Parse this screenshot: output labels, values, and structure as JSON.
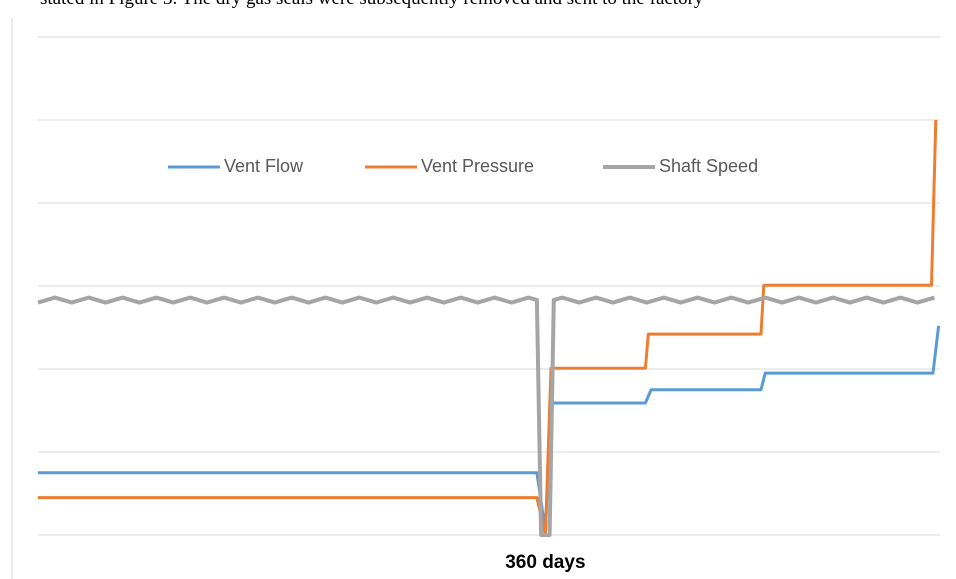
{
  "caption": "stated in Figure 3. The dry gas seals were subsequently removed and sent to the factory",
  "chart_data": {
    "type": "line",
    "xlim": [
      0,
      640
    ],
    "xticks": [
      {
        "value": 360,
        "label": "360 days"
      }
    ],
    "ylim": [
      0,
      6
    ],
    "yticks": [
      0,
      1,
      2,
      3,
      4,
      5,
      6
    ],
    "grid": true,
    "legend": "top",
    "series": [
      {
        "name": "Vent Flow",
        "color": "#5b9bd5",
        "x": [
          0,
          354,
          360,
          364,
          431,
          435,
          513,
          516,
          635,
          639
        ],
        "values": [
          0.75,
          0.75,
          0.05,
          1.59,
          1.59,
          1.75,
          1.75,
          1.95,
          1.95,
          2.52
        ]
      },
      {
        "name": "Vent Pressure",
        "color": "#ed7d31",
        "x": [
          0,
          354,
          360,
          364,
          431,
          433,
          513,
          515,
          634,
          637
        ],
        "values": [
          0.45,
          0.45,
          0,
          2.01,
          2.01,
          2.42,
          2.42,
          3.01,
          3.01,
          5.0
        ]
      },
      {
        "name": "Shaft Speed",
        "color": "#a5a5a5",
        "x": [
          0,
          12,
          24,
          36,
          48,
          60,
          72,
          84,
          96,
          108,
          120,
          132,
          144,
          156,
          168,
          180,
          192,
          204,
          216,
          228,
          240,
          252,
          264,
          276,
          288,
          300,
          312,
          324,
          336,
          348,
          354,
          357,
          363,
          366,
          372,
          384,
          396,
          408,
          420,
          432,
          444,
          456,
          468,
          480,
          492,
          504,
          516,
          528,
          540,
          552,
          564,
          576,
          588,
          600,
          612,
          624,
          636
        ],
        "values": [
          2.8,
          2.86,
          2.8,
          2.86,
          2.8,
          2.86,
          2.8,
          2.86,
          2.8,
          2.86,
          2.8,
          2.86,
          2.8,
          2.86,
          2.8,
          2.86,
          2.8,
          2.86,
          2.8,
          2.86,
          2.8,
          2.86,
          2.8,
          2.86,
          2.8,
          2.86,
          2.8,
          2.86,
          2.8,
          2.86,
          2.83,
          0,
          0,
          2.83,
          2.86,
          2.8,
          2.86,
          2.8,
          2.86,
          2.8,
          2.86,
          2.8,
          2.86,
          2.8,
          2.86,
          2.8,
          2.86,
          2.8,
          2.86,
          2.8,
          2.86,
          2.8,
          2.86,
          2.8,
          2.86,
          2.8,
          2.86
        ]
      }
    ]
  }
}
